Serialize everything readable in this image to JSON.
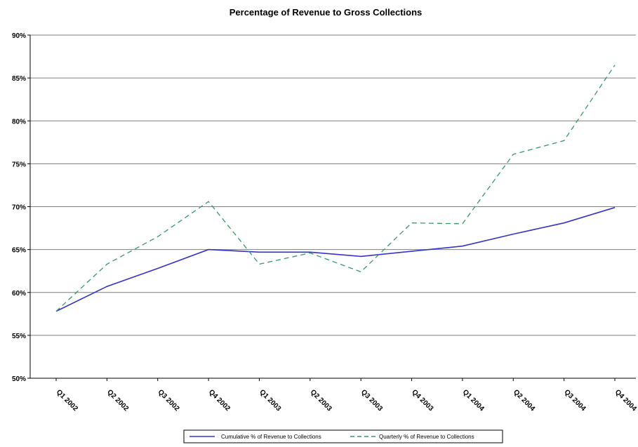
{
  "chart_data": {
    "type": "line",
    "title": "Percentage of Revenue to Gross Collections",
    "categories": [
      "Q1 2002",
      "Q2 2002",
      "Q3 2002",
      "Q4 2002",
      "Q1 2003",
      "Q2 2003",
      "Q3 2003",
      "Q4 2003",
      "Q1 2004",
      "Q2 2004",
      "Q3 2004",
      "Q4 2004"
    ],
    "series": [
      {
        "name": "Cumulative % of Revenue to Collections",
        "values": [
          57.8,
          60.7,
          62.8,
          65.0,
          64.7,
          64.7,
          64.2,
          64.8,
          65.4,
          66.8,
          68.1,
          69.9
        ],
        "color": "#3333cc",
        "style": "solid"
      },
      {
        "name": "Quarterly % of Revenue to Collections",
        "values": [
          57.8,
          63.3,
          66.5,
          70.6,
          63.3,
          64.6,
          62.4,
          68.1,
          68.0,
          76.1,
          77.7,
          86.5
        ],
        "color": "#339966",
        "style": "dashed"
      }
    ],
    "ylim": [
      50,
      90
    ],
    "yticks": [
      "50%",
      "55%",
      "60%",
      "65%",
      "70%",
      "75%",
      "80%",
      "85%",
      "90%"
    ],
    "grid": true,
    "legend": "bottom"
  }
}
